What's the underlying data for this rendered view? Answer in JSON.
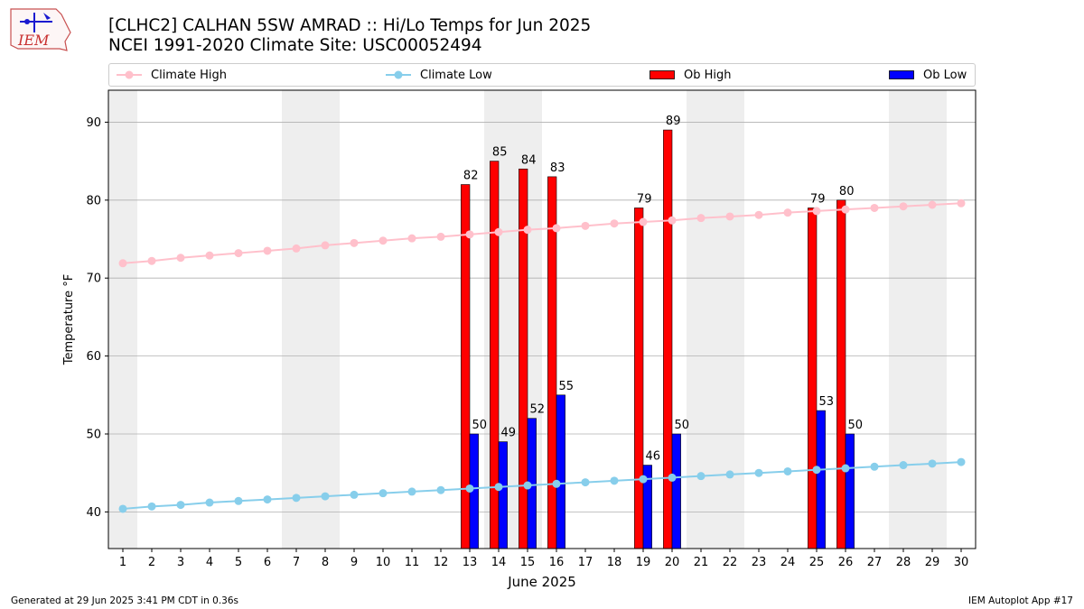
{
  "header": {
    "title_line1": "[CLHC2] CALHAN 5SW AMRAD :: Hi/Lo Temps for Jun 2025",
    "title_line2": "NCEI 1991-2020 Climate Site: USC00052494",
    "logo_text": "IEM"
  },
  "legend": {
    "climate_high": "Climate High",
    "climate_low": "Climate Low",
    "ob_high": "Ob High",
    "ob_low": "Ob Low"
  },
  "footer": {
    "generated": "Generated at 29 Jun 2025 3:41 PM CDT in 0.36s",
    "app": "IEM Autoplot App #17"
  },
  "colors": {
    "climate_high": "#ffc0cb",
    "climate_low": "#87ceeb",
    "ob_high": "#ff0000",
    "ob_low": "#0000ff",
    "weekend_shade": "#eeeeee",
    "grid": "#b0b0b0"
  },
  "chart_data": {
    "type": "bar",
    "xlabel": "June 2025",
    "ylabel": "Temperature °F",
    "ylim": [
      35.3,
      94.1
    ],
    "yticks": [
      40,
      50,
      60,
      70,
      80,
      90
    ],
    "x": [
      1,
      2,
      3,
      4,
      5,
      6,
      7,
      8,
      9,
      10,
      11,
      12,
      13,
      14,
      15,
      16,
      17,
      18,
      19,
      20,
      21,
      22,
      23,
      24,
      25,
      26,
      27,
      28,
      29,
      30
    ],
    "grid": "horizontal",
    "legend_position": "top",
    "shaded_days": [
      1,
      7,
      8,
      14,
      15,
      21,
      22,
      28,
      29
    ],
    "series": [
      {
        "name": "Climate High",
        "kind": "line",
        "values": [
          71.9,
          72.2,
          72.6,
          72.9,
          73.2,
          73.5,
          73.8,
          74.2,
          74.5,
          74.8,
          75.1,
          75.3,
          75.6,
          75.9,
          76.2,
          76.4,
          76.7,
          77.0,
          77.2,
          77.4,
          77.7,
          77.9,
          78.1,
          78.4,
          78.6,
          78.8,
          79.0,
          79.2,
          79.4,
          79.6
        ]
      },
      {
        "name": "Climate Low",
        "kind": "line",
        "values": [
          40.4,
          40.7,
          40.9,
          41.2,
          41.4,
          41.6,
          41.8,
          42.0,
          42.2,
          42.4,
          42.6,
          42.8,
          43.0,
          43.2,
          43.4,
          43.6,
          43.8,
          44.0,
          44.2,
          44.4,
          44.6,
          44.8,
          45.0,
          45.2,
          45.4,
          45.6,
          45.8,
          46.0,
          46.2,
          46.4
        ]
      },
      {
        "name": "Ob High",
        "kind": "bar",
        "values": [
          null,
          null,
          null,
          null,
          null,
          null,
          null,
          null,
          null,
          null,
          null,
          null,
          82,
          85,
          84,
          83,
          null,
          null,
          79,
          89,
          null,
          null,
          null,
          null,
          79,
          80,
          null,
          null,
          null,
          null
        ]
      },
      {
        "name": "Ob Low",
        "kind": "bar",
        "values": [
          null,
          null,
          null,
          null,
          null,
          null,
          null,
          null,
          null,
          null,
          null,
          null,
          50,
          49,
          52,
          55,
          null,
          null,
          46,
          50,
          null,
          null,
          null,
          null,
          53,
          50,
          null,
          null,
          null,
          null
        ]
      }
    ]
  }
}
